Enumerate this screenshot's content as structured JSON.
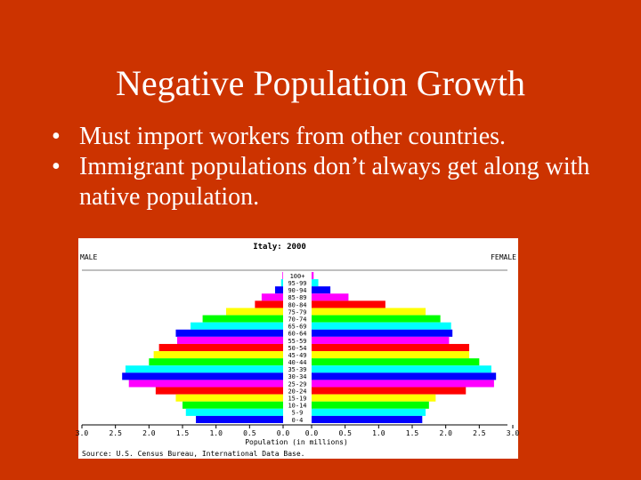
{
  "slide": {
    "title": "Negative Population Growth",
    "bullet_glyph": "•",
    "bullets": [
      "Must import workers from other countries.",
      "Immigrant populations don’t always get along with native population."
    ]
  },
  "chart_data": {
    "type": "bar",
    "orientation": "horizontal",
    "layout": "population-pyramid",
    "title": "Italy: 2000",
    "left_label": "MALE",
    "right_label": "FEMALE",
    "xlabel": "Population (in millions)",
    "source": "Source: U.S. Census Bureau, International Data Base.",
    "x_range": [
      0,
      3.0
    ],
    "x_ticks": [
      "3.0",
      "2.5",
      "2.0",
      "1.5",
      "1.0",
      "0.5",
      "0.0",
      "0.0",
      "0.5",
      "1.0",
      "1.5",
      "2.0",
      "2.5",
      "3.0"
    ],
    "categories": [
      "100+",
      "95-99",
      "90-94",
      "85-89",
      "80-84",
      "75-79",
      "70-74",
      "65-69",
      "60-64",
      "55-59",
      "50-54",
      "45-49",
      "40-44",
      "35-39",
      "30-34",
      "25-29",
      "20-24",
      "15-19",
      "10-14",
      "5-9",
      "0-4"
    ],
    "series": [
      {
        "name": "MALE",
        "values": [
          0.01,
          0.03,
          0.12,
          0.32,
          0.42,
          0.85,
          1.2,
          1.38,
          1.6,
          1.58,
          1.85,
          1.93,
          2.0,
          2.35,
          2.4,
          2.3,
          1.9,
          1.6,
          1.5,
          1.45,
          1.3
        ]
      },
      {
        "name": "FEMALE",
        "values": [
          0.03,
          0.1,
          0.28,
          0.55,
          1.1,
          1.7,
          1.92,
          2.08,
          2.1,
          2.05,
          2.35,
          2.35,
          2.5,
          2.68,
          2.75,
          2.72,
          2.3,
          1.85,
          1.75,
          1.7,
          1.65
        ]
      }
    ],
    "colors": [
      "#ff00ff",
      "#00ffff",
      "#0000ff",
      "#ff00ff",
      "#ff0000",
      "#ffff00",
      "#00ff00",
      "#00ffff",
      "#0000ff",
      "#ff00ff",
      "#ff0000",
      "#ffff00",
      "#00ff00",
      "#00ffff",
      "#0000ff",
      "#ff00ff",
      "#ff0000",
      "#ffff00",
      "#00ff00",
      "#00ffff",
      "#0000ff"
    ]
  }
}
